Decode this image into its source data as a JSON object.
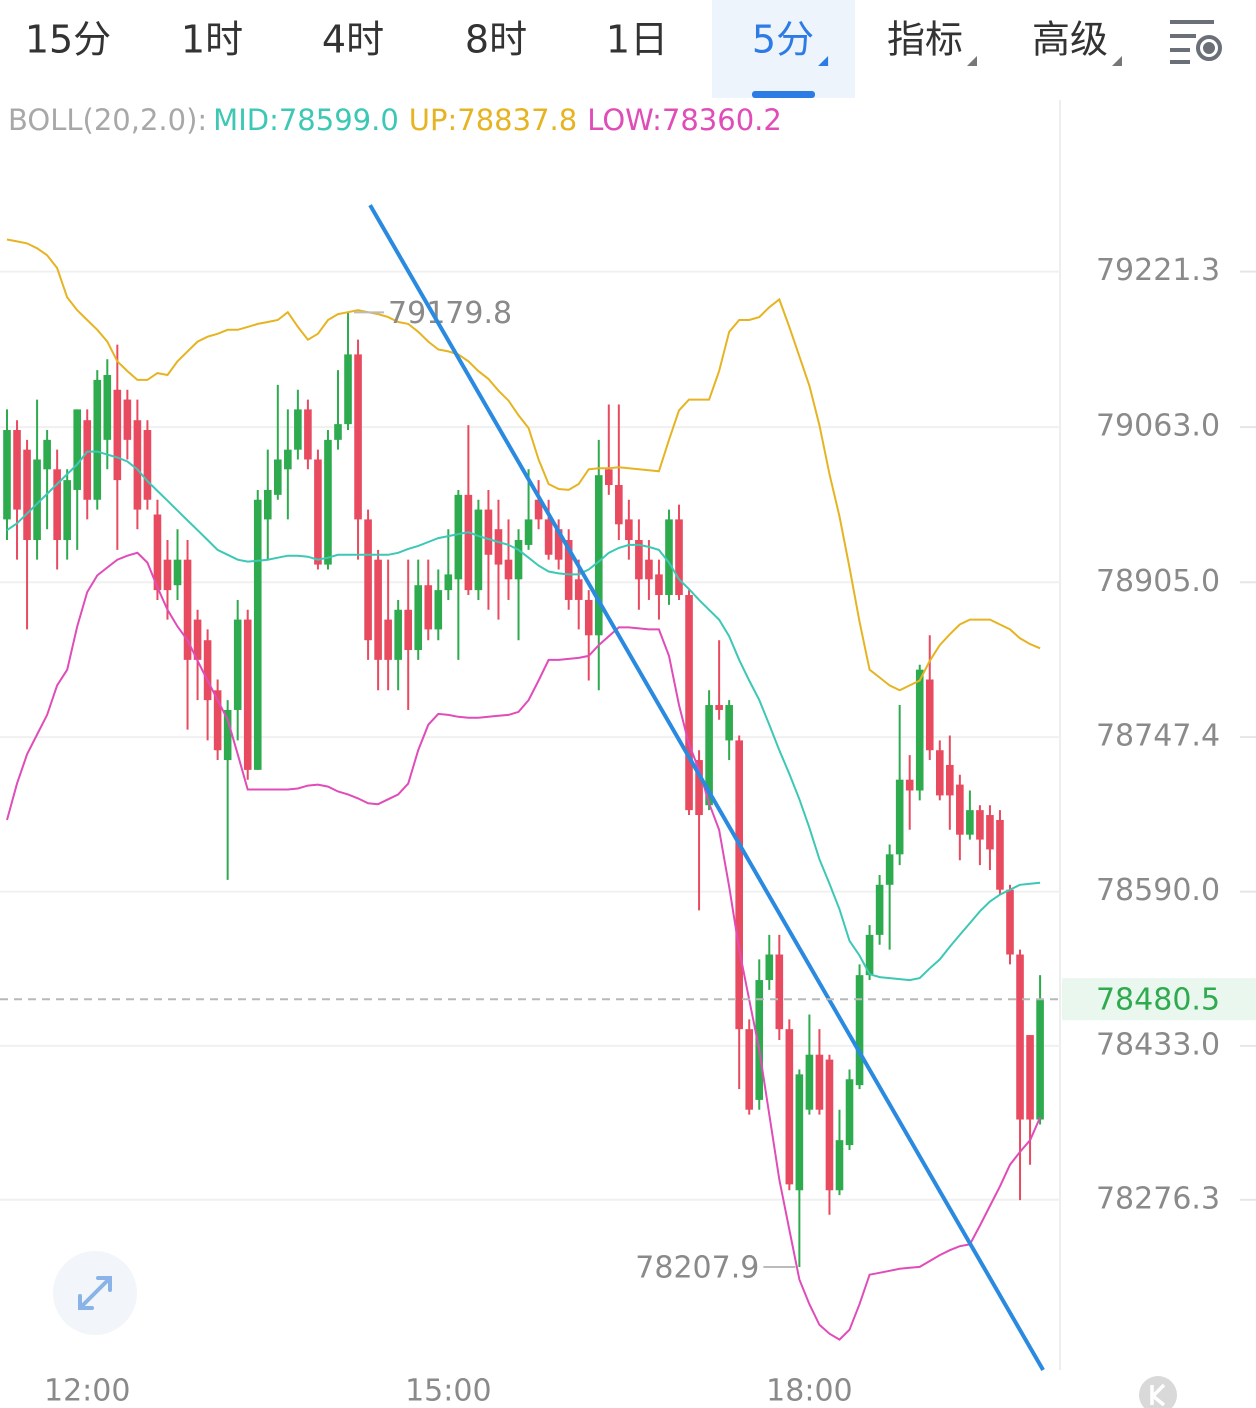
{
  "tabs": [
    {
      "label": "15分"
    },
    {
      "label": "1时"
    },
    {
      "label": "4时"
    },
    {
      "label": "8时"
    },
    {
      "label": "1日"
    },
    {
      "label": "5分",
      "active": true,
      "dropdown": true
    },
    {
      "label": "指标",
      "dropdown": true
    },
    {
      "label": "高级",
      "dropdown": true
    }
  ],
  "chart_data": {
    "type": "candlestick",
    "indicator": "BOLL(20,2.0):",
    "categories": [
      null,
      null,
      null,
      null,
      null,
      null,
      null,
      null,
      "12:00",
      null,
      null,
      null,
      null,
      null,
      null,
      null,
      null,
      null,
      null,
      null,
      null,
      null,
      null,
      null,
      null,
      null,
      null,
      null,
      null,
      null,
      null,
      null,
      null,
      null,
      null,
      null,
      null,
      null,
      null,
      null,
      null,
      null,
      null,
      null,
      "15:00",
      null,
      null,
      null,
      null,
      null,
      null,
      null,
      null,
      null,
      null,
      null,
      null,
      null,
      null,
      null,
      null,
      null,
      null,
      null,
      null,
      null,
      null,
      null,
      null,
      null,
      null,
      null,
      null,
      null,
      null,
      null,
      null,
      null,
      null,
      null,
      "18:00",
      null,
      null,
      null,
      null,
      null,
      null,
      null,
      null,
      null,
      null,
      null,
      null,
      null,
      null,
      null,
      null,
      null,
      null,
      null,
      null,
      null,
      null,
      null
    ],
    "open": [
      78969,
      79060,
      79040,
      78948,
      79020,
      79020,
      78948,
      78999,
      79070,
      78989,
      79050,
      79101,
      79091,
      79070,
      79060,
      78974,
      78928,
      78902,
      78928,
      78867,
      78846,
      78795,
      78724,
      78775,
      78867,
      78714,
      78969,
      78994,
      79020,
      79040,
      79081,
      79030,
      78923,
      79050,
      79066,
      79137,
      78969,
      78928,
      78867,
      78826,
      78877,
      78836,
      78902,
      78857,
      78897,
      78908,
      78994,
      78897,
      78979,
      78959,
      78928,
      78908,
      78943,
      78989,
      78969,
      78959,
      78948,
      78908,
      78887,
      78851,
      79020,
      79004,
      78969,
      78948,
      78928,
      78913,
      78892,
      78969,
      78892,
      78724,
      78678,
      78780,
      78744,
      78744,
      78450,
      78378,
      78500,
      78526,
      78450,
      78286,
      78368,
      78424,
      78419,
      78286,
      78332,
      78393,
      78505,
      78546,
      78597,
      78628,
      78704,
      78693,
      78806,
      78734,
      78719,
      78699,
      78648,
      78673,
      78668,
      78663,
      78592,
      78526,
      78444,
      78358
    ],
    "high": [
      79081,
      79070,
      79050,
      79091,
      79060,
      79040,
      79020,
      79081,
      79081,
      79121,
      79132,
      79147,
      79101,
      79091,
      79070,
      78989,
      78948,
      78959,
      78948,
      78877,
      78857,
      78806,
      78785,
      78887,
      78877,
      78999,
      79040,
      79106,
      79081,
      79101,
      79091,
      79040,
      79060,
      79121,
      79179.8,
      79152,
      78979,
      78938,
      78928,
      78887,
      78928,
      78928,
      78928,
      78918,
      78959,
      78999,
      79065,
      78989,
      78999,
      78989,
      78969,
      78959,
      79020,
      79009,
      78989,
      78969,
      78959,
      78928,
      78897,
      79050,
      79086,
      79086,
      78989,
      78969,
      78948,
      78928,
      78979,
      78984,
      78897,
      78734,
      78795,
      78846,
      78785,
      78749,
      78460,
      78521,
      78546,
      78546,
      78460,
      78409,
      78465,
      78450,
      78424,
      78368,
      78409,
      78516,
      78556,
      78607,
      78638,
      78780,
      78729,
      78821,
      78851,
      78744,
      78749,
      78709,
      78693,
      78678,
      78678,
      78673,
      78597,
      78531,
      78444,
      78505
    ],
    "low": [
      78948,
      78928,
      78857,
      78928,
      78959,
      78918,
      78928,
      78938,
      78969,
      78979,
      79020,
      78938,
      79030,
      78959,
      78979,
      78887,
      78867,
      78887,
      78755,
      78785,
      78744,
      78724,
      78602,
      78744,
      78704,
      78714,
      78928,
      78989,
      78969,
      79030,
      79020,
      78918,
      78918,
      79040,
      79060,
      78928,
      78826,
      78795,
      78795,
      78795,
      78775,
      78826,
      78846,
      78846,
      78887,
      78826,
      78892,
      78887,
      78877,
      78867,
      78887,
      78846,
      78938,
      78959,
      78928,
      78918,
      78877,
      78857,
      78805,
      78795,
      78994,
      78948,
      78928,
      78877,
      78887,
      78867,
      78882,
      78887,
      78668,
      78571,
      78673,
      78765,
      78724,
      78389,
      78363,
      78368,
      78490,
      78439,
      78286,
      78207.9,
      78363,
      78363,
      78261,
      78281,
      78327,
      78389,
      78500,
      78536,
      78531,
      78617,
      78653,
      78683,
      78724,
      78683,
      78653,
      78622,
      78643,
      78617,
      78612,
      78587,
      78516,
      78276,
      78312,
      78353
    ],
    "close": [
      79060,
      78979,
      78948,
      79030,
      79050,
      78948,
      79009,
      79081,
      78989,
      79111,
      79116,
      79009,
      79050,
      78979,
      78989,
      78897,
      78897,
      78928,
      78826,
      78826,
      78785,
      78734,
      78775,
      78867,
      78714,
      78989,
      78999,
      79030,
      79040,
      79081,
      79030,
      78923,
      79050,
      79066,
      79137,
      78969,
      78846,
      78826,
      78826,
      78877,
      78836,
      78902,
      78857,
      78897,
      78913,
      78994,
      78897,
      78979,
      78933,
      78923,
      78908,
      78948,
      78969,
      78969,
      78933,
      78928,
      78887,
      78887,
      78851,
      79014,
      79004,
      78964,
      78948,
      78908,
      78908,
      78892,
      78969,
      78892,
      78673,
      78668,
      78780,
      78775,
      78780,
      78450,
      78368,
      78500,
      78526,
      78450,
      78292,
      78404,
      78424,
      78368,
      78286,
      78337,
      78399,
      78505,
      78546,
      78597,
      78628,
      78704,
      78693,
      78816,
      78734,
      78688,
      78688,
      78648,
      78673,
      78643,
      78633,
      78592,
      78526,
      78358,
      78358,
      78480.5
    ],
    "up_color": "#2eaa4f",
    "down_color": "#e84a5f",
    "bands": [
      {
        "label": "MID:78599.0",
        "color": "#3cc8b4",
        "values": [
          78958,
          78965,
          78975,
          78985,
          78995,
          79005,
          79015,
          79025,
          79038,
          79038,
          79035,
          79032,
          79028,
          79020,
          79008,
          78998,
          78988,
          78978,
          78968,
          78958,
          78948,
          78938,
          78933,
          78928,
          78926,
          78927,
          78928,
          78930,
          78932,
          78932,
          78931,
          78928,
          78930,
          78933,
          78933,
          78933,
          78933,
          78933,
          78933,
          78935,
          78939,
          78942,
          78946,
          78950,
          78952,
          78954,
          78956,
          78952,
          78949,
          78946,
          78943,
          78938,
          78930,
          78922,
          78916,
          78914,
          78913,
          78913,
          78918,
          78926,
          78935,
          78940,
          78943,
          78943,
          78941,
          78938,
          78925,
          78908,
          78898,
          78887,
          78877,
          78867,
          78850,
          78826,
          78805,
          78785,
          78760,
          78734,
          78710,
          78684,
          78655,
          78623,
          78598,
          78572,
          78540,
          78525,
          78506,
          78503,
          78502,
          78501,
          78500,
          78502,
          78512,
          78521,
          78534,
          78546,
          78558,
          78570,
          78580,
          78587,
          78592,
          78597,
          78598,
          78599
        ]
      },
      {
        "label": "UP:78837.8",
        "color": "#e6b422",
        "values": [
          79254,
          79252,
          79250,
          79245,
          79238,
          79225,
          79195,
          79182,
          79172,
          79162,
          79150,
          79130,
          79120,
          79111,
          79111,
          79118,
          79116,
          79130,
          79140,
          79150,
          79155,
          79158,
          79162,
          79162,
          79165,
          79168,
          79170,
          79172,
          79180,
          79165,
          79152,
          79158,
          79172,
          79178,
          79180,
          79182,
          79180,
          79178,
          79175,
          79170,
          79168,
          79160,
          79150,
          79142,
          79140,
          79137,
          79130,
          79120,
          79112,
          79100,
          79090,
          79075,
          79062,
          79030,
          79005,
          79000,
          78999,
          79005,
          79020,
          79021,
          79021,
          79022,
          79021,
          79020,
          79019,
          79018,
          79050,
          79080,
          79091,
          79091,
          79091,
          79120,
          79160,
          79172,
          79172,
          79175,
          79185,
          79193,
          79165,
          79135,
          79105,
          79065,
          79015,
          78972,
          78920,
          78865,
          78816,
          78808,
          78800,
          78795,
          78800,
          78805,
          78825,
          78841,
          78852,
          78862,
          78867,
          78867,
          78867,
          78862,
          78857,
          78848,
          78842,
          78837.8
        ]
      },
      {
        "label": "LOW:78360.2",
        "color": "#e04cb8",
        "values": [
          78663,
          78700,
          78730,
          78750,
          78770,
          78800,
          78816,
          78860,
          78895,
          78912,
          78920,
          78928,
          78932,
          78935,
          78925,
          78900,
          78877,
          78860,
          78846,
          78825,
          78805,
          78785,
          78765,
          78730,
          78694,
          78694,
          78694,
          78694,
          78694,
          78695,
          78698,
          78699,
          78697,
          78692,
          78689,
          78685,
          78680,
          78679,
          78684,
          78689,
          78700,
          78734,
          78760,
          78771,
          78770,
          78768,
          78767,
          78767,
          78768,
          78769,
          78770,
          78773,
          78785,
          78805,
          78826,
          78826,
          78827,
          78828,
          78830,
          78841,
          78850,
          78859,
          78859,
          78858,
          78857,
          78857,
          78830,
          78780,
          78740,
          78714,
          78680,
          78653,
          78595,
          78531,
          78480,
          78429,
          78363,
          78297,
          78246,
          78195,
          78170,
          78149,
          78140,
          78134,
          78144,
          78170,
          78200,
          78202,
          78204,
          78206,
          78207,
          78208,
          78214,
          78220,
          78225,
          78229,
          78231,
          78250,
          78270,
          78290,
          78312,
          78325,
          78337,
          78360.2
        ]
      }
    ],
    "trendline": {
      "x": [
        36.2,
        103.3
      ],
      "y": [
        79289,
        78103
      ],
      "color": "#2a8ae0"
    },
    "ylim": [
      78103,
      79396
    ],
    "yticks": [
      79221.3,
      {
        "value": 79063,
        "label": "79063.0"
      },
      {
        "value": 78905,
        "label": "78905.0"
      },
      78747.4,
      {
        "value": 78590,
        "label": "78590.0"
      },
      {
        "value": 78433,
        "label": "78433.0"
      },
      78276.3
    ],
    "grid": true
  }
}
